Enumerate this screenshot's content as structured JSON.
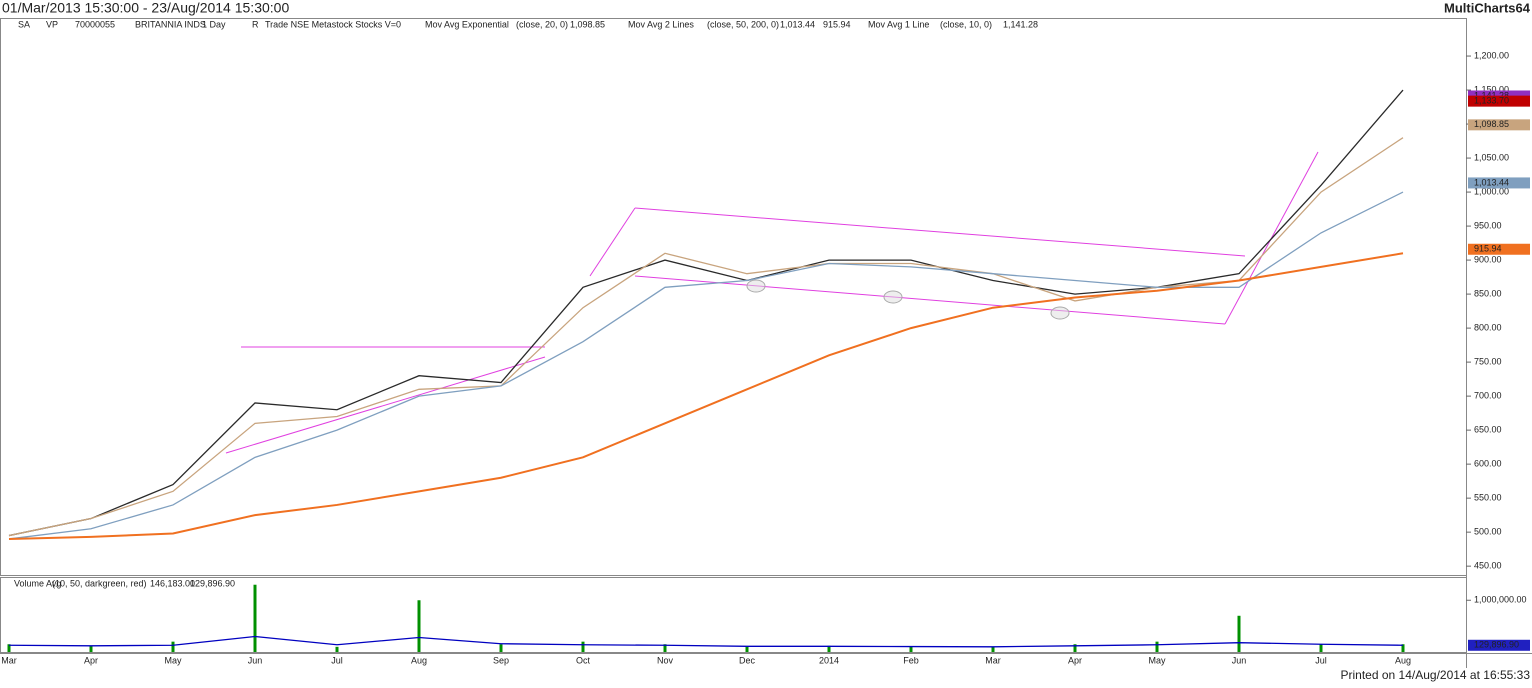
{
  "header": {
    "title": "01/Mar/2013 15:30:00 - 23/Aug/2014 15:30:00",
    "brand": "MultiCharts64",
    "footer": "Printed on 14/Aug/2014 at 16:55:33",
    "legend": [
      "SA",
      "VP",
      "70000055",
      "BRITANNIA INDS",
      "1 Day",
      "R",
      "Trade NSE Metastock Stocks V=0",
      "Mov Avg Exponential",
      "(close, 20, 0)",
      "1,098.85",
      "Mov Avg 2 Lines",
      "(close, 50, 200, 0)",
      "1,013.44",
      "915.94",
      "Mov Avg 1 Line",
      "(close, 10, 0)",
      "1,141.28"
    ],
    "volume_legend": [
      "Volume Avg",
      "(10, 50, darkgreen, red)",
      "146,183.00",
      "129,896.90"
    ]
  },
  "chart_data": [
    {
      "type": "line",
      "categories": [
        "Mar",
        "Apr",
        "May",
        "Jun",
        "Jul",
        "Aug",
        "Sep",
        "Oct",
        "Nov",
        "Dec",
        "2014",
        "Feb",
        "Mar",
        "Apr",
        "May",
        "Jun",
        "Jul",
        "Aug"
      ],
      "series": [
        {
          "name": "Close",
          "color": "#2a2a2a",
          "values": [
            495,
            520,
            570,
            690,
            680,
            730,
            720,
            860,
            900,
            870,
            900,
            900,
            870,
            850,
            860,
            880,
            1010,
            1150
          ]
        },
        {
          "name": "Mov Avg Exponential",
          "color": "#c8a47e",
          "values": [
            495,
            520,
            560,
            660,
            670,
            710,
            715,
            830,
            910,
            880,
            895,
            895,
            880,
            840,
            860,
            870,
            1000,
            1080
          ]
        },
        {
          "name": "Mov Avg 50",
          "color": "#7f9fbf",
          "values": [
            490,
            505,
            540,
            610,
            650,
            700,
            715,
            780,
            860,
            870,
            895,
            890,
            880,
            870,
            860,
            860,
            940,
            1000
          ]
        },
        {
          "name": "Mov Avg 200",
          "color": "#f07020",
          "values": [
            490,
            493,
            498,
            525,
            540,
            560,
            580,
            610,
            660,
            710,
            760,
            800,
            830,
            845,
            855,
            870,
            890,
            910
          ]
        }
      ],
      "ylim": [
        437,
        1253
      ],
      "yticks": [
        {
          "value": 450,
          "label": "450.00"
        },
        {
          "value": 500,
          "label": "500.00"
        },
        {
          "value": 550,
          "label": "550.00"
        },
        {
          "value": 600,
          "label": "600.00"
        },
        {
          "value": 650,
          "label": "650.00"
        },
        {
          "value": 700,
          "label": "700.00"
        },
        {
          "value": 750,
          "label": "750.00"
        },
        {
          "value": 800,
          "label": "800.00"
        },
        {
          "value": 850,
          "label": "850.00"
        },
        {
          "value": 900,
          "label": "900.00"
        },
        {
          "value": 950,
          "label": "950.00"
        },
        {
          "value": 1000,
          "label": "1,000.00"
        },
        {
          "value": 1050,
          "label": "1,050.00"
        },
        {
          "value": 1100,
          "label": "1,100.00"
        },
        {
          "value": 1150,
          "label": "1,150.00"
        },
        {
          "value": 1200,
          "label": "1,200.00"
        }
      ],
      "markers": [
        {
          "value": 1141.28,
          "label": "1,141.28",
          "color": "#9030c0"
        },
        {
          "value": 1133.7,
          "label": "1,133.70",
          "color": "#c00000"
        },
        {
          "value": 1098.85,
          "label": "1,098.85",
          "color": "#c8a47e"
        },
        {
          "value": 1013.44,
          "label": "1,013.44",
          "color": "#7f9fbf"
        },
        {
          "value": 915.94,
          "label": "915.94",
          "color": "#f07020"
        }
      ]
    },
    {
      "type": "bar",
      "categories": [
        "Mar",
        "Apr",
        "May",
        "Jun",
        "Jul",
        "Aug",
        "Sep",
        "Oct",
        "Nov",
        "Dec",
        "2014",
        "Feb",
        "Mar",
        "Apr",
        "May",
        "Jun",
        "Jul",
        "Aug"
      ],
      "series": [
        {
          "name": "Volume",
          "color": "#009000",
          "values": [
            150000,
            120000,
            200000,
            1300000,
            100000,
            1000000,
            150000,
            200000,
            150000,
            100000,
            120000,
            100000,
            100000,
            150000,
            200000,
            700000,
            150000,
            150000
          ]
        },
        {
          "name": "Volume Avg",
          "color": "#0000c0",
          "values": [
            130000,
            120000,
            130000,
            300000,
            140000,
            280000,
            160000,
            140000,
            130000,
            110000,
            110000,
            105000,
            100000,
            120000,
            140000,
            180000,
            150000,
            130000
          ]
        }
      ],
      "ylim": [
        0,
        1430000
      ],
      "yticks": [
        {
          "value": 1000000,
          "label": "1,000,000.00"
        }
      ],
      "markers": [
        {
          "value": 129896.9,
          "label": "129,896.90",
          "color": "#2020c0"
        }
      ]
    }
  ]
}
